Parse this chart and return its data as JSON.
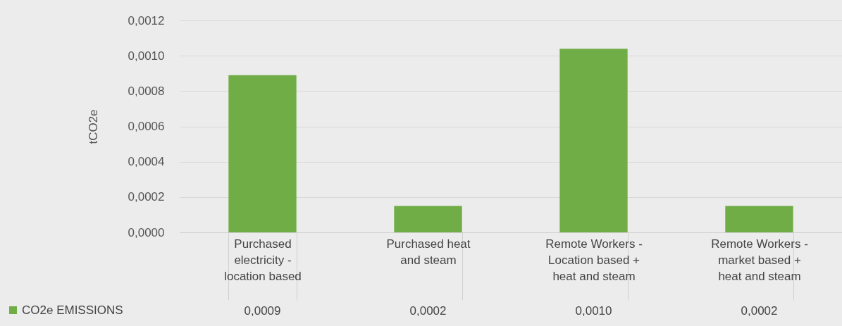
{
  "chart_data": {
    "type": "bar",
    "ylabel": "tCO2e",
    "categories": [
      "Purchased electricity - location based",
      "Purchased heat and steam",
      "Remote Workers - Location based + heat and steam",
      "Remote Workers - market based + heat and steam"
    ],
    "series": [
      {
        "name": "CO2e EMISSIONS",
        "color": "#70ad47",
        "values": [
          0.00089,
          0.00015,
          0.00104,
          0.00015
        ],
        "value_labels": [
          "0,0009",
          "0,0002",
          "0,0010",
          "0,0002"
        ]
      }
    ],
    "ylim": [
      0,
      0.0012
    ],
    "yticks": [
      {
        "value": 0,
        "label": "0,0000"
      },
      {
        "value": 0.0002,
        "label": "0,0002"
      },
      {
        "value": 0.0004,
        "label": "0,0004"
      },
      {
        "value": 0.0006,
        "label": "0,0006"
      },
      {
        "value": 0.0008,
        "label": "0,0008"
      },
      {
        "value": 0.001,
        "label": "0,0010"
      },
      {
        "value": 0.0012,
        "label": "0,0012"
      }
    ],
    "grid": true,
    "legend": "bottom left"
  }
}
